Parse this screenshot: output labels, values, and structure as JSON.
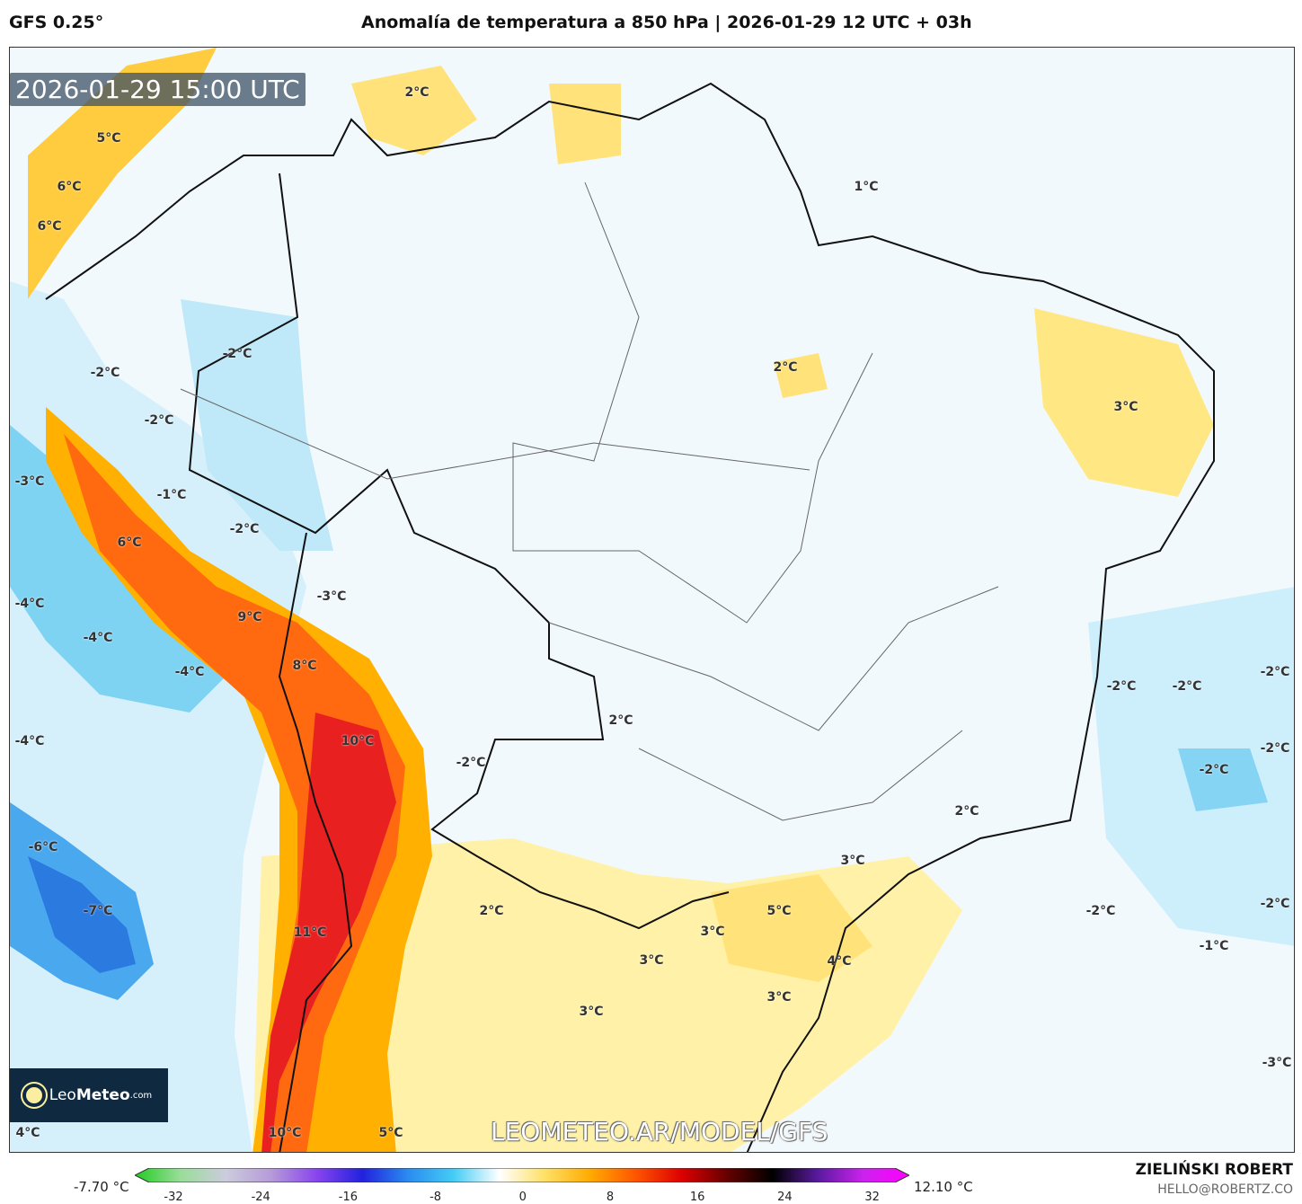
{
  "header": {
    "model": "GFS 0.25°",
    "title": "Anomalía de temperatura a 850 hPa | 2026-01-29 12 UTC + 03h"
  },
  "map": {
    "valid_time": "2026-01-29 15:00 UTC",
    "watermark": "LEOMETEO.AR/MODEL/GFS",
    "logo": {
      "text_light": "Leo",
      "text_bold": "Meteo",
      "suffix": ".com"
    },
    "labels": [
      "2°C",
      "5°C",
      "6°C",
      "6°C",
      "1°C",
      "-2°C",
      "-2°C",
      "2°C",
      "-2°C",
      "3°C",
      "-3°C",
      "-1°C",
      "-2°C",
      "6°C",
      "-3°C",
      "-4°C",
      "9°C",
      "-4°C",
      "8°C",
      "-4°C",
      "-2°C",
      "-2°C",
      "-2°C",
      "2°C",
      "-4°C",
      "10°C",
      "-2°C",
      "-2°C",
      "-2°C",
      "2°C",
      "-6°C",
      "3°C",
      "-2°C",
      "2°C",
      "-7°C",
      "5°C",
      "-2°C",
      "3°C",
      "11°C",
      "-1°C",
      "3°C",
      "4°C",
      "3°C",
      "3°C",
      "-3°C",
      "4°C",
      "10°C",
      "5°C"
    ]
  },
  "colorbar": {
    "min_label": "-7.70 °C",
    "max_label": "12.10 °C",
    "ticks": [
      "-32",
      "-24",
      "-16",
      "-8",
      "0",
      "8",
      "16",
      "24",
      "32"
    ],
    "colors": [
      "#22cc22",
      "#99dd99",
      "#ccccdd",
      "#b59ad8",
      "#8844ee",
      "#2222dd",
      "#2a8cf0",
      "#44ccf5",
      "#ffffff",
      "#ffe066",
      "#ffaa00",
      "#ff5500",
      "#dd0000",
      "#660000",
      "#000000",
      "#5a1aa0",
      "#cc22ee",
      "#ff00ff"
    ]
  },
  "credits": {
    "author": "ZIELIŃSKI ROBERT",
    "email": "HELLO@ROBERTZ.CO"
  }
}
